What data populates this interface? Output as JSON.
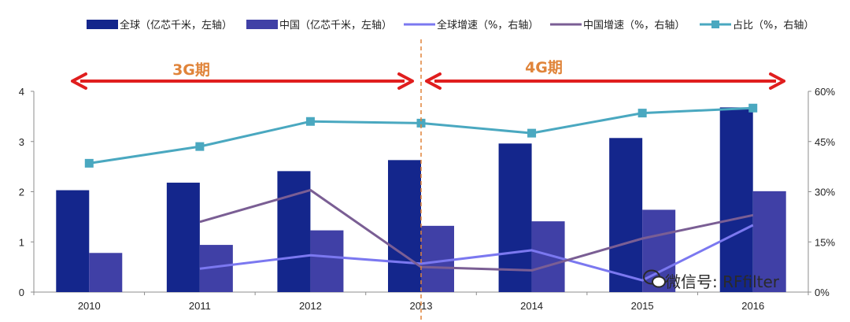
{
  "chart_data": {
    "type": "bar",
    "categories": [
      "2010",
      "2011",
      "2012",
      "2013",
      "2014",
      "2015",
      "2016"
    ],
    "series": [
      {
        "name": "全球（亿芯千米，左轴）",
        "kind": "bar",
        "axis": "left",
        "color": "#14268c",
        "values": [
          2.03,
          2.18,
          2.41,
          2.63,
          2.96,
          3.07,
          3.68
        ]
      },
      {
        "name": "中国（亿芯千米，左轴）",
        "kind": "bar",
        "axis": "left",
        "color": "#4040a6",
        "values": [
          0.78,
          0.94,
          1.23,
          1.32,
          1.41,
          1.64,
          2.01
        ]
      },
      {
        "name": "全球增速（%，右轴）",
        "kind": "line",
        "axis": "right",
        "color": "#7b78f0",
        "values": [
          null,
          7.0,
          11.0,
          8.5,
          12.5,
          3.5,
          20.0
        ]
      },
      {
        "name": "中国增速（%，右轴）",
        "kind": "line",
        "axis": "right",
        "color": "#7a5e94",
        "values": [
          null,
          21.0,
          30.5,
          7.5,
          6.5,
          16.0,
          23.0
        ]
      },
      {
        "name": "占比（%，右轴）",
        "kind": "line-marker",
        "axis": "right",
        "color": "#4aa8c0",
        "values": [
          38.5,
          43.5,
          51.0,
          50.5,
          47.5,
          53.5,
          55.0
        ]
      }
    ],
    "ylim_left": [
      0,
      4
    ],
    "yticks_left": [
      "0",
      "1",
      "2",
      "3",
      "4"
    ],
    "ylim_right": [
      0,
      60
    ],
    "yticks_right": [
      "0%",
      "15%",
      "30%",
      "45%",
      "60%"
    ],
    "grid": false,
    "legend": "top",
    "annotations": {
      "era_3g": "3G期",
      "era_4g": "4G期",
      "divider_after": "2013",
      "era_color": "#e0843a",
      "arrow_color": "#e01e1e"
    }
  },
  "watermark": {
    "text": "微信号: RFfilter"
  }
}
